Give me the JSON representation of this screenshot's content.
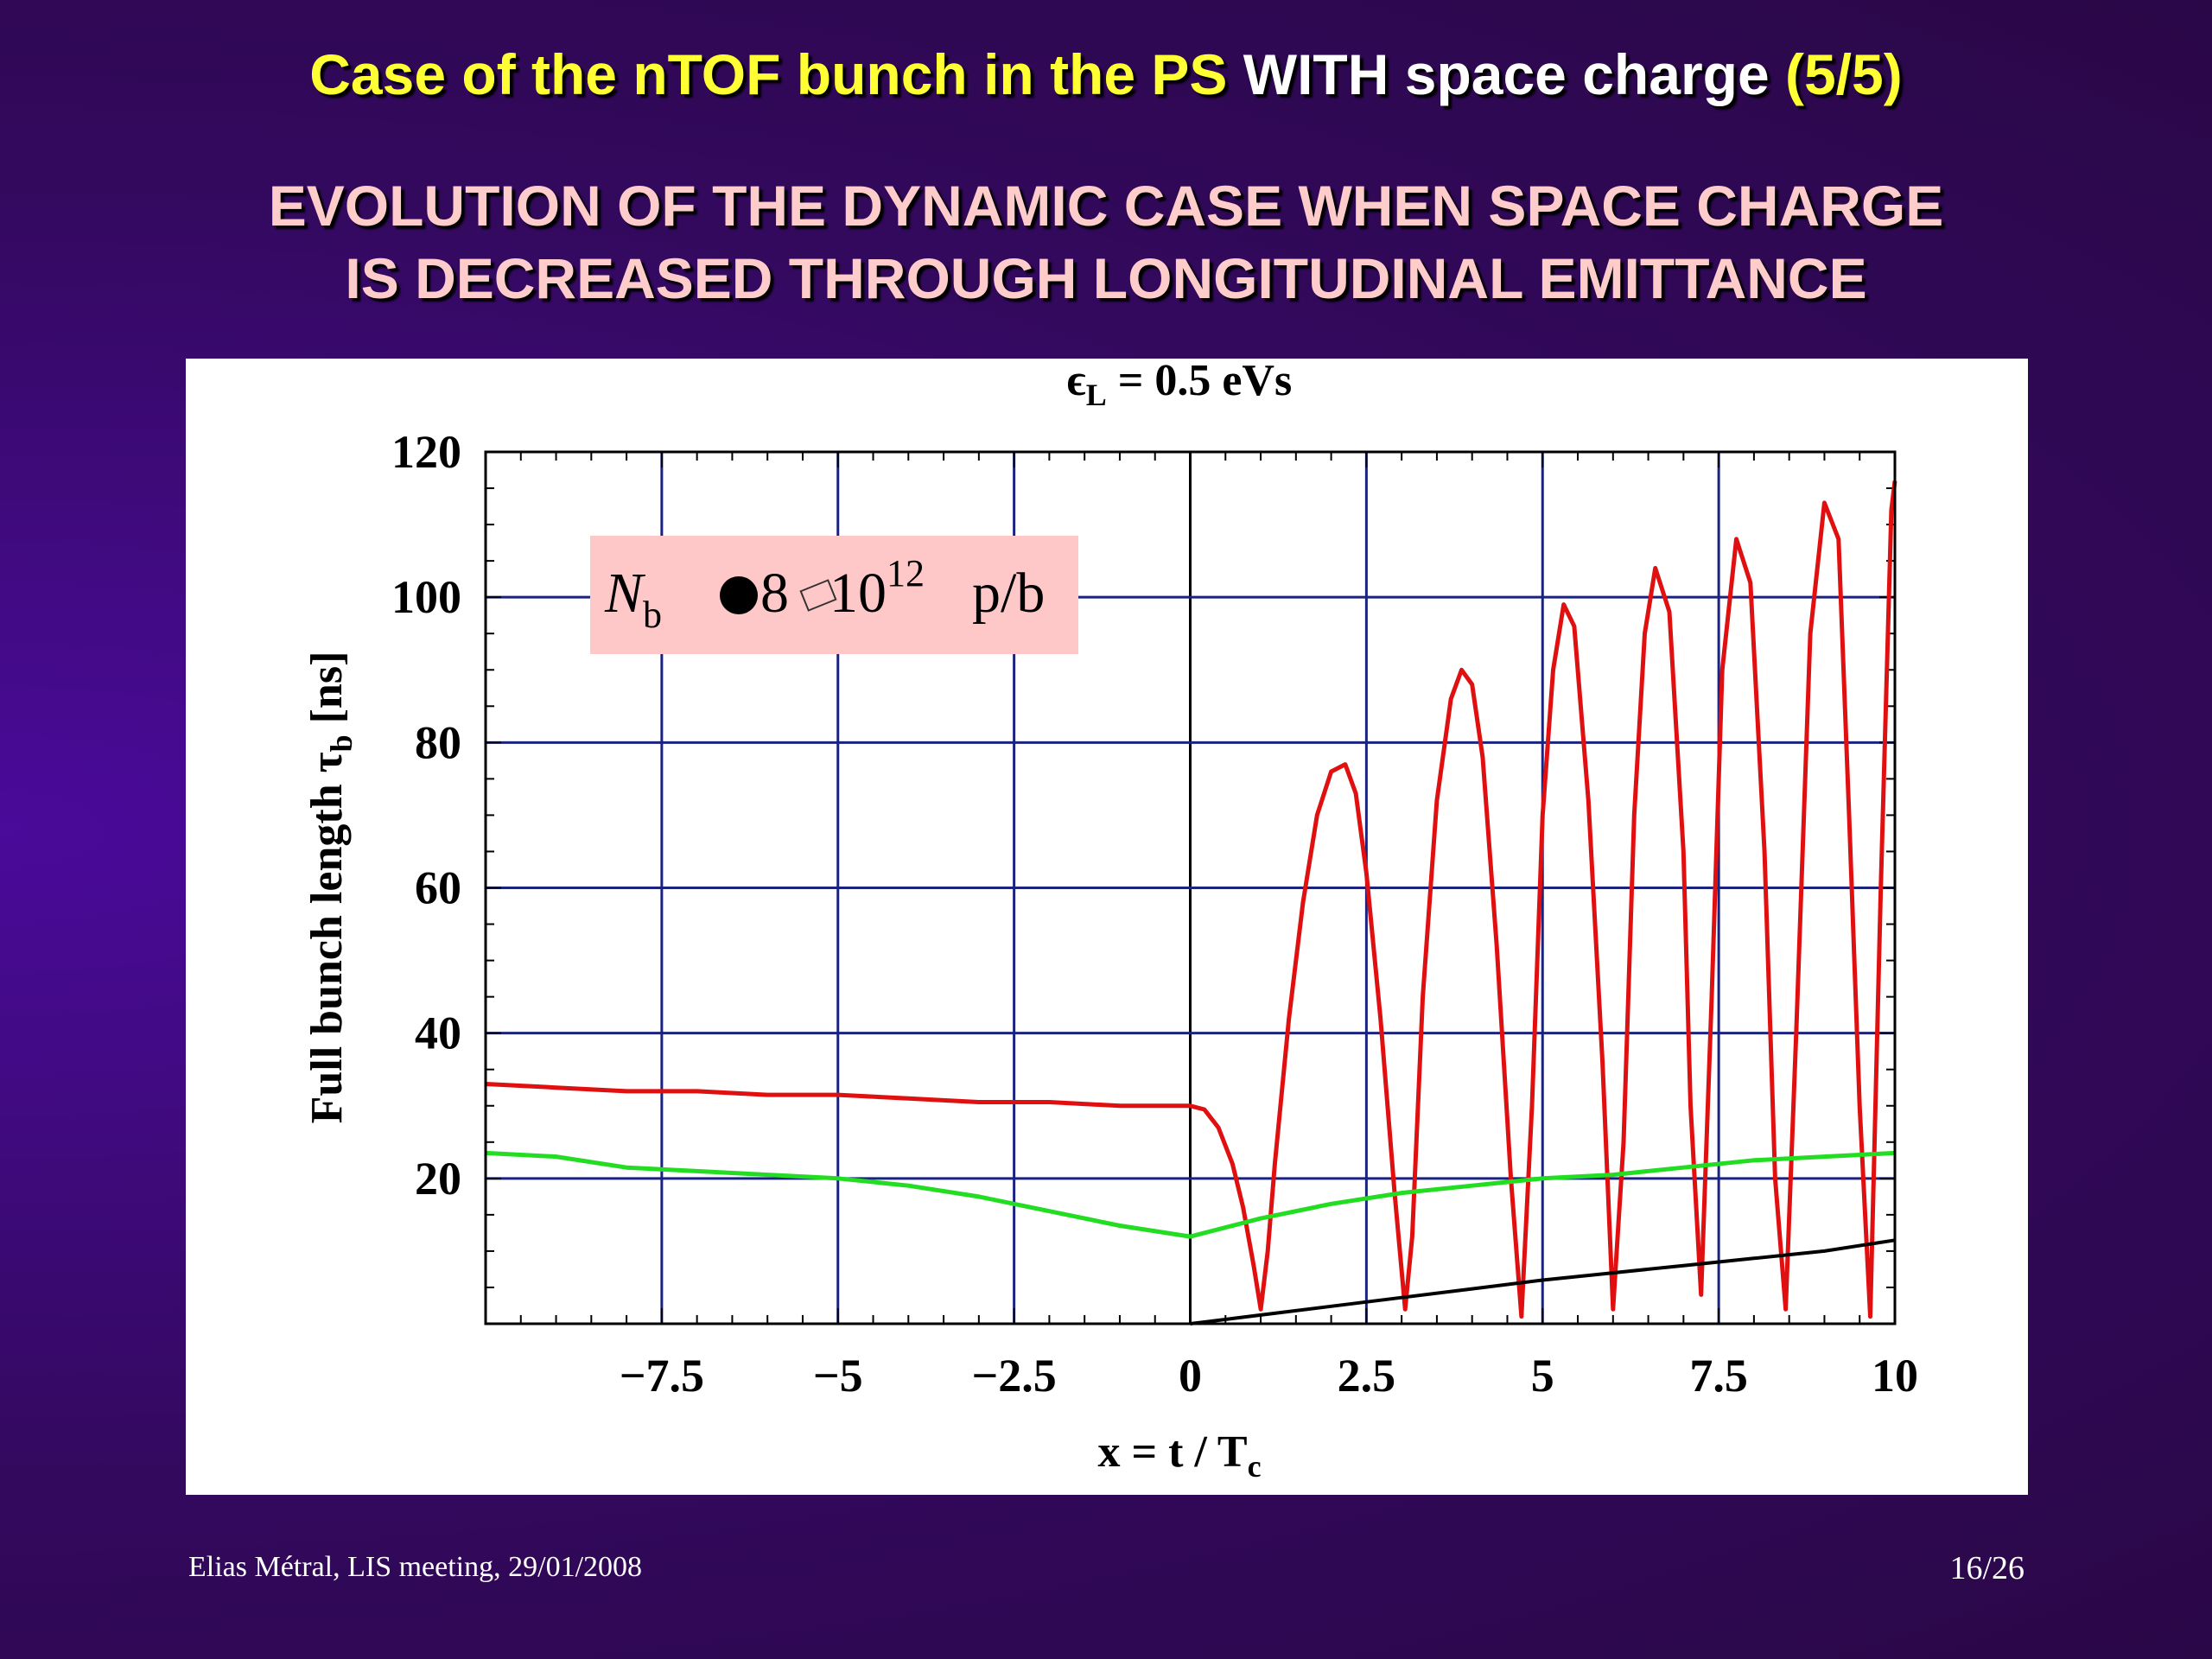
{
  "slide": {
    "title_part1": "Case of the nTOF bunch in the PS",
    "title_part2": "WITH space charge",
    "title_part3": "(5/5)",
    "subtitle_line1": "EVOLUTION OF THE DYNAMIC CASE WHEN SPACE CHARGE",
    "subtitle_line2": "IS DECREASED THROUGH LONGITUDINAL EMITTANCE",
    "footer_left": "Elias Métral, LIS meeting, 29/01/2008",
    "footer_right": "16/26"
  },
  "colors": {
    "title_yellow": "#ffff33",
    "subtitle_pink": "#ffcccc",
    "grid_blue": "#1a237e",
    "red_series": "#e01010",
    "green_series": "#22dd22",
    "black_series": "#000000",
    "annotation_bg": "#ffc8c8"
  },
  "chart_data": {
    "type": "line",
    "title": "ϵL = 0.5 eVs",
    "title_main": "ϵ",
    "title_sub": "L",
    "title_rest": " = 0.5 eVs",
    "xlabel": "x = t / Tc",
    "xlabel_main": "x = t / T",
    "xlabel_sub": "c",
    "ylabel": "Full bunch length τb [ns]",
    "ylabel_main": "Full bunch length τ",
    "ylabel_sub": "b",
    "ylabel_rest": " [ns]",
    "xlim": [
      -10,
      10
    ],
    "ylim": [
      0,
      120
    ],
    "x_ticks": [
      -7.5,
      -5,
      -2.5,
      0,
      2.5,
      5,
      7.5,
      10
    ],
    "x_tick_labels": [
      "−7.5",
      "−5",
      "−2.5",
      "0",
      "2.5",
      "5",
      "7.5",
      "10"
    ],
    "y_ticks": [
      20,
      40,
      60,
      80,
      100,
      120
    ],
    "y_tick_labels": [
      "20",
      "40",
      "60",
      "80",
      "100",
      "120"
    ],
    "grid": true,
    "annotation": {
      "text_N": "N",
      "text_sub": "b",
      "text_mid": "8",
      "text_exp_base": "10",
      "text_exp": "12",
      "text_unit": "p/b"
    },
    "series": [
      {
        "color": "red",
        "x": [
          -10,
          -9,
          -8,
          -7,
          -6,
          -5,
          -4,
          -3,
          -2,
          -1,
          0,
          0.2,
          0.4,
          0.6,
          0.75,
          0.9,
          1.0,
          1.1,
          1.2,
          1.4,
          1.6,
          1.8,
          2.0,
          2.2,
          2.35,
          2.5,
          2.7,
          2.9,
          3.05,
          3.15,
          3.3,
          3.5,
          3.7,
          3.85,
          4.0,
          4.15,
          4.35,
          4.55,
          4.7,
          4.85,
          5.0,
          5.15,
          5.3,
          5.45,
          5.65,
          5.85,
          6.0,
          6.15,
          6.3,
          6.45,
          6.6,
          6.8,
          7.0,
          7.1,
          7.25,
          7.4,
          7.55,
          7.75,
          7.95,
          8.15,
          8.3,
          8.45,
          8.6,
          8.8,
          9.0,
          9.2,
          9.35,
          9.5,
          9.65,
          9.8,
          9.95,
          10.0
        ],
        "y": [
          33,
          32.5,
          32,
          32,
          31.5,
          31.5,
          31,
          30.5,
          30.5,
          30,
          30,
          29.5,
          27,
          22,
          16,
          8,
          2,
          10,
          22,
          42,
          58,
          70,
          76,
          77,
          73,
          62,
          42,
          18,
          2,
          12,
          45,
          72,
          86,
          90,
          88,
          78,
          52,
          20,
          1,
          30,
          70,
          90,
          99,
          96,
          72,
          36,
          2,
          25,
          70,
          95,
          104,
          98,
          65,
          30,
          4,
          45,
          90,
          108,
          102,
          65,
          20,
          2,
          40,
          95,
          113,
          108,
          70,
          30,
          1,
          60,
          112,
          116
        ]
      },
      {
        "color": "green",
        "x": [
          -10,
          -9,
          -8,
          -7,
          -6,
          -5,
          -4,
          -3,
          -2,
          -1,
          0,
          1,
          2,
          3,
          4,
          5,
          6,
          7,
          8,
          9,
          10
        ],
        "y": [
          23.5,
          23,
          21.5,
          21,
          20.5,
          20,
          19,
          17.5,
          15.5,
          13.5,
          12,
          14.5,
          16.5,
          18,
          19,
          20,
          20.5,
          21.5,
          22.5,
          23,
          23.5
        ]
      },
      {
        "color": "black",
        "x": [
          0,
          1,
          2,
          3,
          4,
          5,
          6,
          7,
          8,
          9,
          10
        ],
        "y": [
          0,
          1.2,
          2.4,
          3.6,
          4.8,
          6,
          7,
          8,
          9,
          10,
          11.5
        ]
      }
    ]
  }
}
